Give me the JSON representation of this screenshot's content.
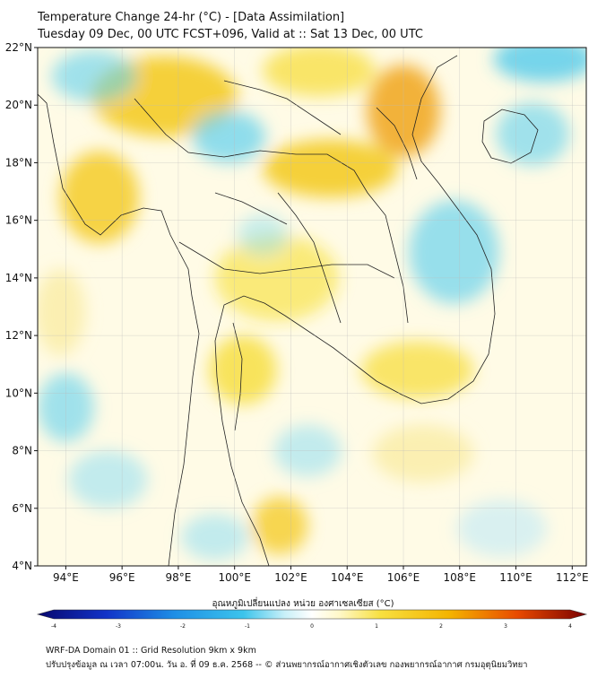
{
  "header": {
    "title_line1": "Temperature Change 24-hr (°C) - [Data Assimilation]",
    "title_line2": "Tuesday 09 Dec, 00 UTC FCST+096, Valid at :: Sat 13 Dec, 00 UTC"
  },
  "map": {
    "lat_range": [
      4,
      22
    ],
    "lon_range": [
      93,
      112.5
    ],
    "lat_ticks": [
      {
        "value": 22,
        "label": "22°N"
      },
      {
        "value": 20,
        "label": "20°N"
      },
      {
        "value": 18,
        "label": "18°N"
      },
      {
        "value": 16,
        "label": "16°N"
      },
      {
        "value": 14,
        "label": "14°N"
      },
      {
        "value": 12,
        "label": "12°N"
      },
      {
        "value": 10,
        "label": "10°N"
      },
      {
        "value": 8,
        "label": "8°N"
      },
      {
        "value": 6,
        "label": "6°N"
      },
      {
        "value": 4,
        "label": "4°N"
      }
    ],
    "lon_ticks": [
      {
        "value": 94,
        "label": "94°E"
      },
      {
        "value": 96,
        "label": "96°E"
      },
      {
        "value": 98,
        "label": "98°E"
      },
      {
        "value": 100,
        "label": "100°E"
      },
      {
        "value": 102,
        "label": "102°E"
      },
      {
        "value": 104,
        "label": "104°E"
      },
      {
        "value": 106,
        "label": "106°E"
      },
      {
        "value": 108,
        "label": "108°E"
      },
      {
        "value": 110,
        "label": "110°E"
      },
      {
        "value": 112,
        "label": "112°E"
      }
    ],
    "field_blobs": [
      {
        "lon": 97.5,
        "lat": 20.3,
        "rx": 2.6,
        "ry": 1.4,
        "color": "#f2c200",
        "opacity": 0.75
      },
      {
        "lon": 95.2,
        "lat": 16.8,
        "rx": 1.4,
        "ry": 1.6,
        "color": "#f2c200",
        "opacity": 0.7
      },
      {
        "lon": 103.4,
        "lat": 17.8,
        "rx": 2.4,
        "ry": 1.0,
        "color": "#f2c200",
        "opacity": 0.75
      },
      {
        "lon": 106.0,
        "lat": 19.8,
        "rx": 1.3,
        "ry": 1.6,
        "color": "#ee9a00",
        "opacity": 0.75
      },
      {
        "lon": 103.0,
        "lat": 21.2,
        "rx": 2.0,
        "ry": 0.9,
        "color": "#f4d400",
        "opacity": 0.55
      },
      {
        "lon": 101.5,
        "lat": 14.0,
        "rx": 2.2,
        "ry": 1.5,
        "color": "#f6dc20",
        "opacity": 0.55
      },
      {
        "lon": 100.3,
        "lat": 10.8,
        "rx": 1.2,
        "ry": 1.2,
        "color": "#f4d400",
        "opacity": 0.6
      },
      {
        "lon": 106.5,
        "lat": 10.8,
        "rx": 2.0,
        "ry": 1.0,
        "color": "#f4d400",
        "opacity": 0.55
      },
      {
        "lon": 101.6,
        "lat": 5.4,
        "rx": 1.0,
        "ry": 1.0,
        "color": "#f2c200",
        "opacity": 0.65
      },
      {
        "lon": 106.7,
        "lat": 7.9,
        "rx": 1.8,
        "ry": 1.0,
        "color": "#f8e890",
        "opacity": 0.6
      },
      {
        "lon": 93.8,
        "lat": 12.8,
        "rx": 0.9,
        "ry": 1.5,
        "color": "#f8e890",
        "opacity": 0.6
      },
      {
        "lon": 99.8,
        "lat": 18.9,
        "rx": 1.3,
        "ry": 0.9,
        "color": "#5fd0ee",
        "opacity": 0.7
      },
      {
        "lon": 95.0,
        "lat": 21.0,
        "rx": 1.5,
        "ry": 0.9,
        "color": "#5fd0ee",
        "opacity": 0.6
      },
      {
        "lon": 111.0,
        "lat": 21.6,
        "rx": 1.8,
        "ry": 0.8,
        "color": "#3cc4ec",
        "opacity": 0.7
      },
      {
        "lon": 110.6,
        "lat": 19.0,
        "rx": 1.3,
        "ry": 1.1,
        "color": "#5fd0ee",
        "opacity": 0.6
      },
      {
        "lon": 107.8,
        "lat": 14.9,
        "rx": 1.6,
        "ry": 1.8,
        "color": "#5fd0ee",
        "opacity": 0.65
      },
      {
        "lon": 94.0,
        "lat": 9.5,
        "rx": 1.0,
        "ry": 1.2,
        "color": "#5fd0ee",
        "opacity": 0.6
      },
      {
        "lon": 95.5,
        "lat": 7.0,
        "rx": 1.4,
        "ry": 1.0,
        "color": "#8fdff2",
        "opacity": 0.55
      },
      {
        "lon": 102.6,
        "lat": 8.0,
        "rx": 1.2,
        "ry": 0.9,
        "color": "#8fdff2",
        "opacity": 0.55
      },
      {
        "lon": 99.3,
        "lat": 5.0,
        "rx": 1.2,
        "ry": 0.8,
        "color": "#8fdff2",
        "opacity": 0.55
      },
      {
        "lon": 109.5,
        "lat": 5.3,
        "rx": 1.6,
        "ry": 1.0,
        "color": "#bfeaf6",
        "opacity": 0.6
      },
      {
        "lon": 101.0,
        "lat": 15.5,
        "rx": 0.9,
        "ry": 0.7,
        "color": "#8fdff2",
        "opacity": 0.5
      }
    ]
  },
  "colorbar": {
    "title": "อุณหภูมิเปลี่ยนแปลง หน่วย องศาเซลเซียส (°C)",
    "min": -4,
    "max": 4,
    "ticks": [
      {
        "value": -4,
        "label": "-4"
      },
      {
        "value": -3,
        "label": "-3"
      },
      {
        "value": -2,
        "label": "-2"
      },
      {
        "value": -1,
        "label": "-1"
      },
      {
        "value": 0,
        "label": "0"
      },
      {
        "value": 1,
        "label": "1"
      },
      {
        "value": 2,
        "label": "2"
      },
      {
        "value": 3,
        "label": "3"
      },
      {
        "value": 4,
        "label": "4"
      }
    ],
    "stops": [
      {
        "value": -4,
        "color": "#08086e"
      },
      {
        "value": -3,
        "color": "#1133c8"
      },
      {
        "value": -2,
        "color": "#1e8fe6"
      },
      {
        "value": -1,
        "color": "#3cc4ec"
      },
      {
        "value": -0.4,
        "color": "#c8f0f8"
      },
      {
        "value": 0,
        "color": "#ffffff"
      },
      {
        "value": 0.4,
        "color": "#fff8c8"
      },
      {
        "value": 1,
        "color": "#f8e040"
      },
      {
        "value": 2,
        "color": "#f4b400"
      },
      {
        "value": 3,
        "color": "#e84a00"
      },
      {
        "value": 4,
        "color": "#7a0000"
      }
    ]
  },
  "footer": {
    "line1": "WRF-DA Domain 01 :: Grid Resolution 9km x 9km",
    "line2": "ปรับปรุงข้อมูล ณ เวลา 07:00น. วัน อ. ที่ 09 ธ.ค. 2568 -- © ส่วนพยากรณ์อากาศเชิงตัวเลข กองพยากรณ์อากาศ กรมอุตุนิยมวิทยา"
  }
}
